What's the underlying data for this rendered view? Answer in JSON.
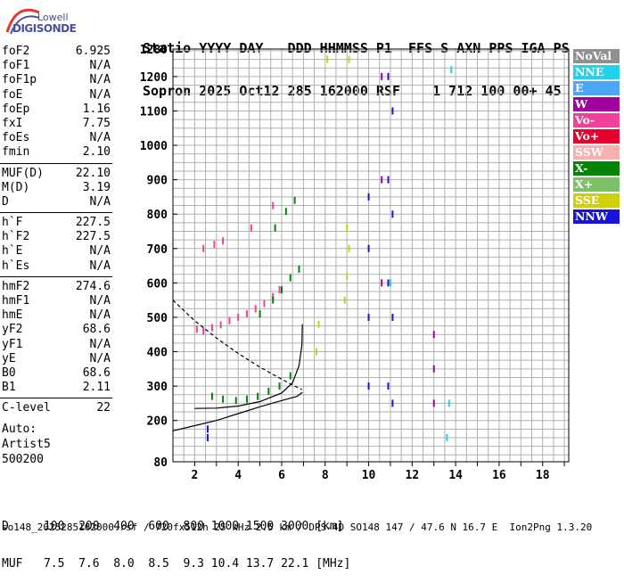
{
  "logo": {
    "line1": "Lowell",
    "line2": "DIGISONDE"
  },
  "header": {
    "line1": "Statio YYYY DAY   DDD HHMMSS P1  FFS S AXN PPS IGA PS",
    "line2": "Sopron 2025 Oct12 285 162000 RSF    1 712 100 00+ 45"
  },
  "params": {
    "group1": [
      {
        "k": "foF2",
        "v": "6.925"
      },
      {
        "k": "foF1",
        "v": "N/A"
      },
      {
        "k": "foF1p",
        "v": "N/A"
      },
      {
        "k": "foE",
        "v": "N/A"
      },
      {
        "k": "foEp",
        "v": "1.16"
      },
      {
        "k": "fxI",
        "v": "7.75"
      },
      {
        "k": "foEs",
        "v": "N/A"
      },
      {
        "k": "fmin",
        "v": "2.10"
      }
    ],
    "group2": [
      {
        "k": "MUF(D)",
        "v": "22.10"
      },
      {
        "k": "M(D)",
        "v": "3.19"
      },
      {
        "k": "D",
        "v": "N/A"
      }
    ],
    "group3": [
      {
        "k": "h`F",
        "v": "227.5"
      },
      {
        "k": "h`F2",
        "v": "227.5"
      },
      {
        "k": "h`E",
        "v": "N/A"
      },
      {
        "k": "h`Es",
        "v": "N/A"
      }
    ],
    "group4": [
      {
        "k": "hmF2",
        "v": "274.6"
      },
      {
        "k": "hmF1",
        "v": "N/A"
      },
      {
        "k": "hmE",
        "v": "N/A"
      },
      {
        "k": "yF2",
        "v": "68.6"
      },
      {
        "k": "yF1",
        "v": "N/A"
      },
      {
        "k": "yE",
        "v": "N/A"
      },
      {
        "k": "B0",
        "v": "68.6"
      },
      {
        "k": "B1",
        "v": "2.11"
      }
    ],
    "group5": [
      {
        "k": "C-level",
        "v": "22"
      }
    ]
  },
  "auto": {
    "line1": "Auto:",
    "line2": "Artist5",
    "line3": "500200"
  },
  "legend": [
    {
      "label": "NoVal",
      "color": "#909090"
    },
    {
      "label": "NNE",
      "color": "#21d1ee"
    },
    {
      "label": "E",
      "color": "#4ba6f8"
    },
    {
      "label": "W",
      "color": "#a0009c"
    },
    {
      "label": "Vo-",
      "color": "#f0409a"
    },
    {
      "label": "Vo+",
      "color": "#e6002e"
    },
    {
      "label": "SSW",
      "color": "#f6b0b0"
    },
    {
      "label": "X-",
      "color": "#038403"
    },
    {
      "label": "X+",
      "color": "#7cc068"
    },
    {
      "label": "SSE",
      "color": "#cfcf0e"
    },
    {
      "label": "NNW",
      "color": "#1a14d6"
    }
  ],
  "footer": {
    "line1": "D     100  200  400  600  800 1000 1500 3000 [km]",
    "line2": "MUF   7.5  7.6  8.0  8.5  9.3 10.4 13.7 22.1 [MHz]",
    "line3": "so148_2025285162000.rsf / 720fx512h 25 kHz 2.5 km / DPS-4D SO148 147 / 47.6 N 16.7 E  Ion2Png 1.3.20"
  },
  "chart_data": {
    "type": "scatter",
    "xlim": [
      1,
      19.2
    ],
    "ylim": [
      80,
      1280
    ],
    "x_ticks": [
      2,
      4,
      6,
      8,
      10,
      12,
      14,
      16,
      18
    ],
    "y_ticks": [
      80,
      200,
      300,
      400,
      500,
      600,
      700,
      800,
      900,
      1000,
      1100,
      1200,
      1280
    ],
    "grid": true,
    "legend_position": "right",
    "traces": [
      {
        "name": "Vo-",
        "points": [
          [
            2.1,
            465
          ],
          [
            2.4,
            460
          ],
          [
            2.8,
            470
          ],
          [
            3.2,
            478
          ],
          [
            3.6,
            490
          ],
          [
            4.0,
            500
          ],
          [
            4.4,
            510
          ],
          [
            4.8,
            525
          ],
          [
            5.2,
            540
          ],
          [
            5.6,
            560
          ],
          [
            5.9,
            580
          ],
          [
            2.4,
            700
          ],
          [
            2.9,
            712
          ],
          [
            3.3,
            722
          ],
          [
            4.6,
            760
          ],
          [
            5.6,
            825
          ]
        ]
      },
      {
        "name": "X-",
        "points": [
          [
            2.8,
            270
          ],
          [
            3.3,
            262
          ],
          [
            3.9,
            258
          ],
          [
            4.4,
            262
          ],
          [
            4.9,
            270
          ],
          [
            5.4,
            285
          ],
          [
            5.9,
            300
          ],
          [
            6.4,
            330
          ],
          [
            5.0,
            510
          ],
          [
            5.6,
            550
          ],
          [
            6.0,
            580
          ],
          [
            6.4,
            615
          ],
          [
            6.8,
            640
          ],
          [
            5.7,
            760
          ],
          [
            6.2,
            808
          ],
          [
            6.6,
            840
          ]
        ]
      },
      {
        "name": "NNW",
        "points": [
          [
            10.0,
            300
          ],
          [
            10.0,
            500
          ],
          [
            10.0,
            700
          ],
          [
            10.0,
            850
          ],
          [
            10.9,
            300
          ],
          [
            10.9,
            600
          ],
          [
            10.9,
            900
          ],
          [
            10.9,
            1200
          ],
          [
            11.1,
            250
          ],
          [
            11.1,
            500
          ],
          [
            11.1,
            800
          ],
          [
            11.1,
            1100
          ],
          [
            2.6,
            150
          ],
          [
            2.6,
            175
          ]
        ]
      },
      {
        "name": "W",
        "points": [
          [
            13.0,
            250
          ],
          [
            13.0,
            350
          ],
          [
            13.0,
            450
          ],
          [
            10.6,
            600
          ],
          [
            10.6,
            900
          ],
          [
            10.6,
            1200
          ]
        ]
      },
      {
        "name": "SSE",
        "points": [
          [
            8.9,
            550
          ],
          [
            9.0,
            620
          ],
          [
            9.1,
            700
          ],
          [
            9.0,
            760
          ],
          [
            7.6,
            400
          ],
          [
            7.7,
            480
          ],
          [
            9.1,
            1250
          ],
          [
            8.1,
            1250
          ]
        ]
      },
      {
        "name": "NNE",
        "points": [
          [
            13.6,
            150
          ],
          [
            13.7,
            250
          ],
          [
            13.8,
            1220
          ],
          [
            11.0,
            600
          ]
        ]
      }
    ],
    "curves": [
      {
        "name": "virtual height (solid)",
        "points": [
          [
            2.0,
            235
          ],
          [
            3.0,
            236
          ],
          [
            4.0,
            242
          ],
          [
            5.0,
            255
          ],
          [
            6.0,
            280
          ],
          [
            6.5,
            310
          ],
          [
            6.8,
            360
          ],
          [
            6.93,
            420
          ],
          [
            6.95,
            480
          ]
        ]
      },
      {
        "name": "virtual height (lower)",
        "points": [
          [
            1.0,
            170
          ],
          [
            2.0,
            185
          ],
          [
            3.0,
            200
          ],
          [
            4.0,
            220
          ],
          [
            5.0,
            240
          ],
          [
            6.0,
            258
          ],
          [
            6.7,
            270
          ],
          [
            6.95,
            282
          ]
        ]
      },
      {
        "name": "model (dashed)",
        "points": [
          [
            1.0,
            550
          ],
          [
            2.0,
            490
          ],
          [
            3.0,
            440
          ],
          [
            4.0,
            395
          ],
          [
            5.0,
            355
          ],
          [
            6.0,
            320
          ],
          [
            6.6,
            300
          ],
          [
            6.93,
            290
          ]
        ]
      }
    ]
  }
}
